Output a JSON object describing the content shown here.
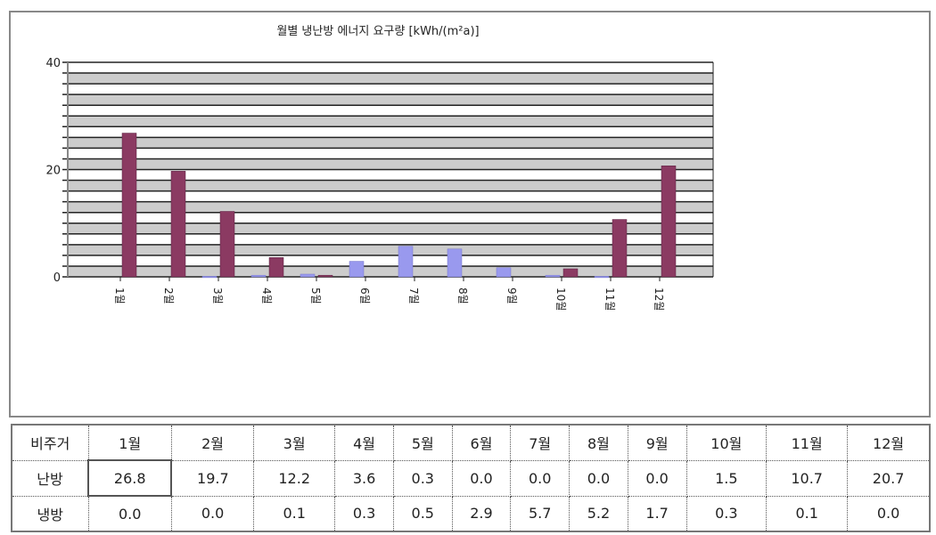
{
  "chart_data": {
    "type": "bar",
    "title": "월별 냉난방 에너지 요구량 [kWh/(m²a)]",
    "categories": [
      "1월",
      "2월",
      "3월",
      "4월",
      "5월",
      "6월",
      "7월",
      "8월",
      "9월",
      "10월",
      "11월",
      "12월"
    ],
    "series": [
      {
        "name": "난방",
        "color": "#8b3a62",
        "values": [
          26.8,
          19.7,
          12.2,
          3.6,
          0.3,
          0.0,
          0.0,
          0.0,
          0.0,
          1.5,
          10.7,
          20.7
        ]
      },
      {
        "name": "냉방",
        "color": "#9999ee",
        "values": [
          0.0,
          0.0,
          0.1,
          0.3,
          0.5,
          2.9,
          5.7,
          5.2,
          1.7,
          0.3,
          0.1,
          0.0
        ]
      }
    ],
    "ylim": [
      0,
      40
    ],
    "yticks": [
      "0",
      "20",
      "40"
    ],
    "grid": true
  },
  "table": {
    "header": [
      "비주거",
      "1월",
      "2월",
      "3월",
      "4월",
      "5월",
      "6월",
      "7월",
      "8월",
      "9월",
      "10월",
      "11월",
      "12월"
    ],
    "rows": [
      [
        "난방",
        "26.8",
        "19.7",
        "12.2",
        "3.6",
        "0.3",
        "0.0",
        "0.0",
        "0.0",
        "0.0",
        "1.5",
        "10.7",
        "20.7"
      ],
      [
        "냉방",
        "0.0",
        "0.0",
        "0.1",
        "0.3",
        "0.5",
        "2.9",
        "5.7",
        "5.2",
        "1.7",
        "0.3",
        "0.1",
        "0.0"
      ]
    ]
  }
}
